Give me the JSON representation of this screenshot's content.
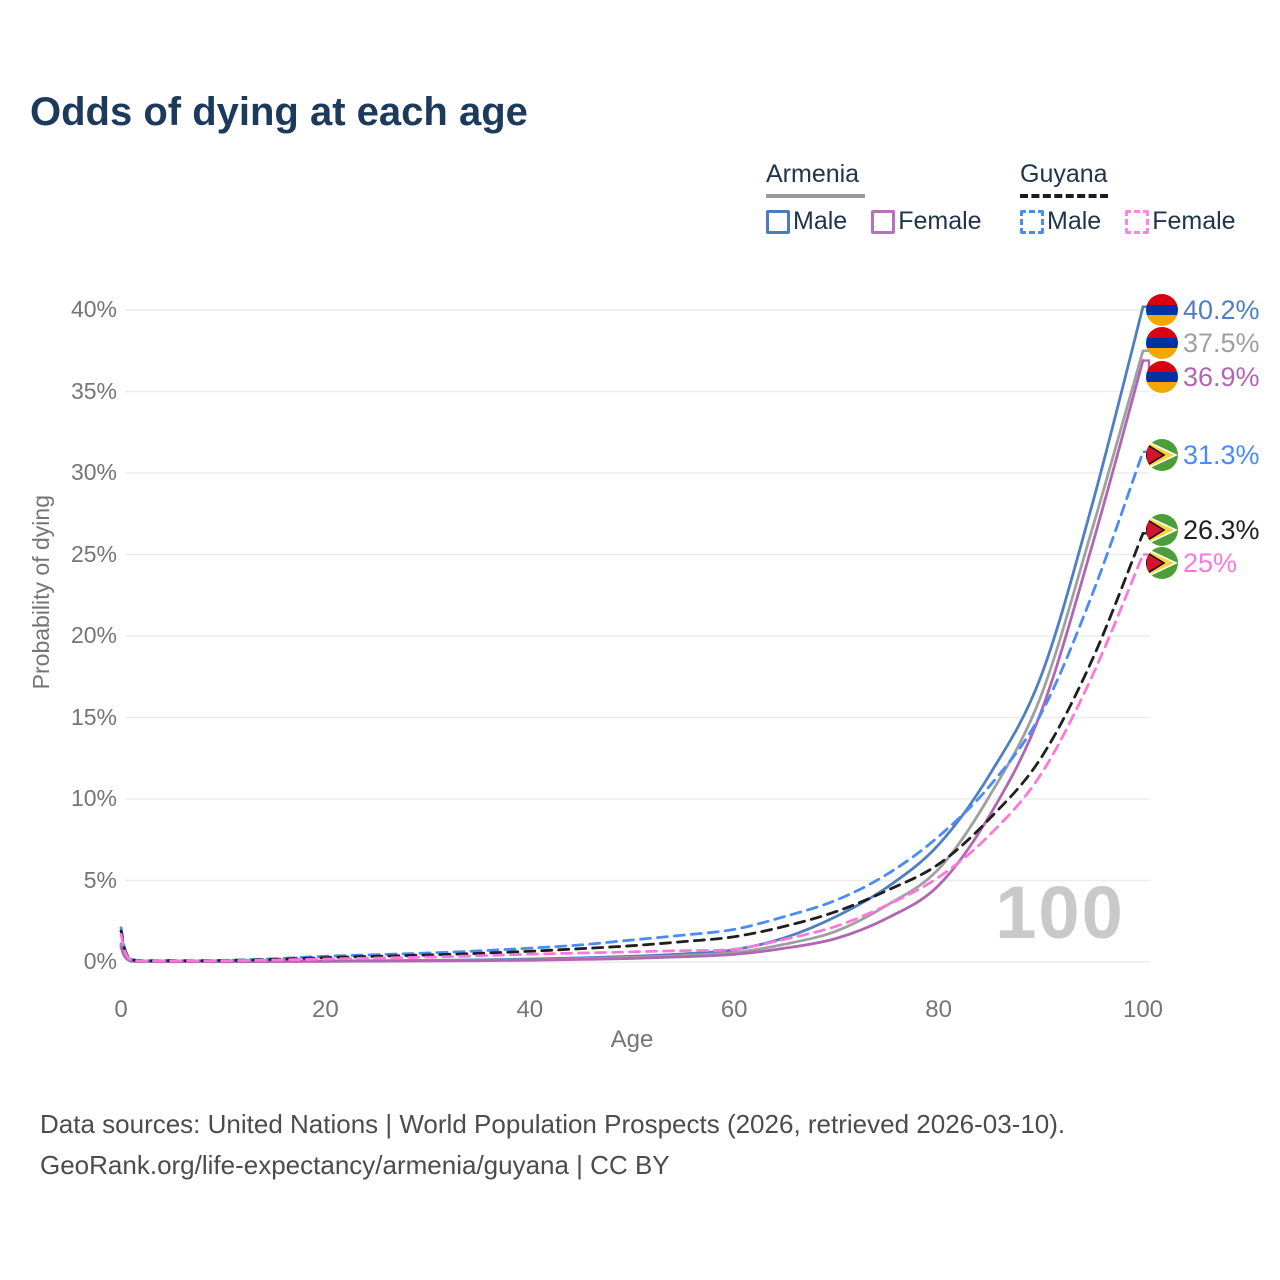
{
  "header": {
    "title": "Odds of dying at each age"
  },
  "legend": {
    "groups": [
      {
        "country": "Armenia",
        "line_style": "solid",
        "underline_color": "#9a9a9a",
        "items": [
          {
            "label": "Male",
            "color": "#4b7cbe"
          },
          {
            "label": "Female",
            "color": "#b573b8"
          }
        ]
      },
      {
        "country": "Guyana",
        "line_style": "dashed",
        "underline_color": "#1c1c1c",
        "items": [
          {
            "label": "Male",
            "color": "#4a8cf5"
          },
          {
            "label": "Female",
            "color": "#ff85e0"
          }
        ]
      }
    ]
  },
  "watermark": "100",
  "footer": {
    "line1": "Data sources: United Nations | World Population Prospects (2026, retrieved 2026-03-10).",
    "line2": "GeoRank.org/life-expectancy/armenia/guyana | CC BY"
  },
  "chart_data": {
    "type": "line",
    "title": "Odds of dying at each age",
    "xlabel": "Age",
    "ylabel": "Probability of dying",
    "xlim": [
      0,
      100
    ],
    "ylim": [
      0,
      40
    ],
    "grid": true,
    "legend_position": "top-right",
    "x_ticks": [
      0,
      20,
      40,
      60,
      80,
      100
    ],
    "x_tick_labels": [
      "0",
      "20",
      "40",
      "60",
      "80",
      "100"
    ],
    "y_ticks": [
      0,
      5,
      10,
      15,
      20,
      25,
      30,
      35,
      40
    ],
    "y_tick_labels": [
      "0%",
      "5%",
      "10%",
      "15%",
      "20%",
      "25%",
      "30%",
      "35%",
      "40%"
    ],
    "ages": [
      0,
      1,
      5,
      10,
      15,
      20,
      25,
      30,
      35,
      40,
      45,
      50,
      55,
      60,
      65,
      70,
      75,
      80,
      85,
      90,
      95,
      100
    ],
    "series": [
      {
        "name": "Armenia Male",
        "country": "Armenia",
        "sex": "Male",
        "flag": "armenia",
        "color": "#4f7fc2",
        "dash": false,
        "end_label": "40.2%",
        "values": [
          1.1,
          0.06,
          0.03,
          0.03,
          0.05,
          0.07,
          0.08,
          0.1,
          0.13,
          0.18,
          0.25,
          0.35,
          0.5,
          0.75,
          1.5,
          2.8,
          4.6,
          7.2,
          11.5,
          17.5,
          28,
          40.2
        ]
      },
      {
        "name": "Armenia (both sexes)",
        "country": "Armenia",
        "sex": "Both",
        "flag": "armenia",
        "color": "#a0a0a0",
        "dash": false,
        "end_label": "37.5%",
        "values": [
          1.0,
          0.05,
          0.025,
          0.025,
          0.04,
          0.05,
          0.06,
          0.08,
          0.1,
          0.14,
          0.2,
          0.28,
          0.4,
          0.58,
          1.1,
          1.9,
          3.5,
          5.7,
          10.2,
          16.3,
          26.5,
          37.5
        ]
      },
      {
        "name": "Armenia Female",
        "country": "Armenia",
        "sex": "Female",
        "flag": "armenia",
        "color": "#b266b2",
        "dash": false,
        "end_label": "36.9%",
        "values": [
          0.9,
          0.045,
          0.02,
          0.02,
          0.03,
          0.04,
          0.05,
          0.06,
          0.08,
          0.11,
          0.16,
          0.22,
          0.32,
          0.47,
          0.85,
          1.45,
          2.7,
          4.7,
          9.0,
          15.3,
          25.5,
          36.9
        ]
      },
      {
        "name": "Guyana Male",
        "country": "Guyana",
        "sex": "Male",
        "flag": "guyana",
        "color": "#4a8cf5",
        "dash": true,
        "end_label": "31.3%",
        "values": [
          2.1,
          0.16,
          0.09,
          0.1,
          0.2,
          0.35,
          0.45,
          0.55,
          0.68,
          0.85,
          1.05,
          1.35,
          1.65,
          2.0,
          2.8,
          3.8,
          5.4,
          7.7,
          10.8,
          15.2,
          22.5,
          31.3
        ]
      },
      {
        "name": "Guyana (both sexes)",
        "country": "Guyana",
        "sex": "Both",
        "flag": "guyana",
        "color": "#1f1f1f",
        "dash": true,
        "end_label": "26.3%",
        "values": [
          1.9,
          0.14,
          0.08,
          0.09,
          0.16,
          0.27,
          0.35,
          0.43,
          0.53,
          0.66,
          0.82,
          1.0,
          1.25,
          1.55,
          2.2,
          3.1,
          4.4,
          6.0,
          8.8,
          12.5,
          18.5,
          26.3
        ]
      },
      {
        "name": "Guyana Female",
        "country": "Guyana",
        "sex": "Female",
        "flag": "guyana",
        "color": "#ff77dd",
        "dash": true,
        "end_label": "25%",
        "values": [
          1.7,
          0.12,
          0.07,
          0.08,
          0.12,
          0.18,
          0.24,
          0.3,
          0.38,
          0.48,
          0.55,
          0.62,
          0.7,
          0.78,
          1.4,
          2.2,
          3.5,
          5.2,
          7.8,
          11.5,
          17.5,
          25
        ]
      }
    ]
  }
}
